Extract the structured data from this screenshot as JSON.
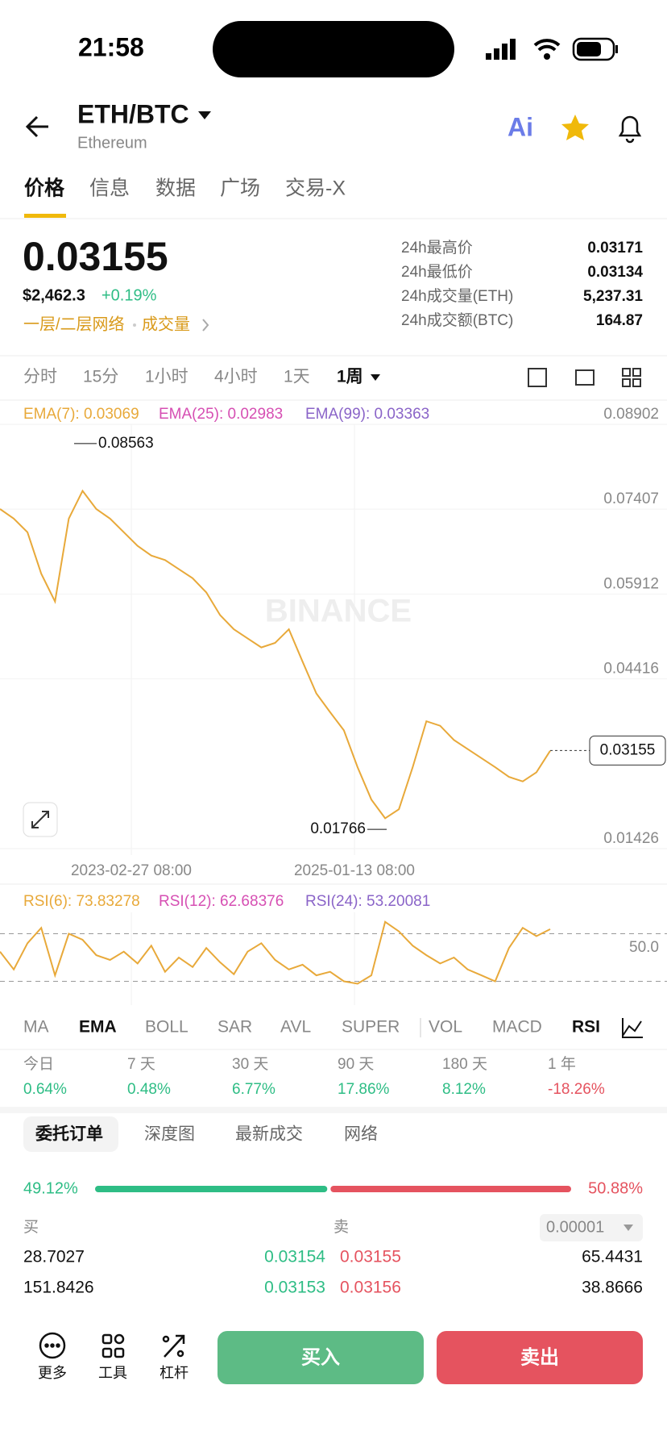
{
  "status_bar": {
    "time": "21:58"
  },
  "header": {
    "pair": "ETH/BTC",
    "name": "Ethereum"
  },
  "tabs": [
    "价格",
    "信息",
    "数据",
    "广场",
    "交易-X"
  ],
  "price": {
    "last": "0.03155",
    "usd": "$2,462.3",
    "change": "+0.19%",
    "tags": [
      "一层/二层网络",
      "成交量"
    ]
  },
  "stats": [
    {
      "label": "24h最高价",
      "value": "0.03171"
    },
    {
      "label": "24h最低价",
      "value": "0.03134"
    },
    {
      "label": "24h成交量(ETH)",
      "value": "5,237.31"
    },
    {
      "label": "24h成交额(BTC)",
      "value": "164.87"
    }
  ],
  "timeframes": [
    "分时",
    "15分",
    "1小时",
    "4小时",
    "1天",
    "1周"
  ],
  "chart_data": [
    {
      "type": "line",
      "color": "#e8a93a",
      "indicators": [
        {
          "label": "EMA(7): 0.03069",
          "color": "#e8a93a"
        },
        {
          "label": "EMA(25): 0.02983",
          "color": "#d64fb3"
        },
        {
          "label": "EMA(99): 0.03363",
          "color": "#8a64c8"
        }
      ],
      "values": [
        0.0741,
        0.0724,
        0.07,
        0.0627,
        0.0578,
        0.0724,
        0.0773,
        0.0741,
        0.0724,
        0.07,
        0.0676,
        0.0659,
        0.0651,
        0.0635,
        0.0619,
        0.0594,
        0.0554,
        0.0529,
        0.0513,
        0.0497,
        0.0505,
        0.0529,
        0.0472,
        0.0416,
        0.0383,
        0.0351,
        0.0286,
        0.0229,
        0.0196,
        0.0212,
        0.0286,
        0.0367,
        0.0359,
        0.0334,
        0.0318,
        0.0302,
        0.0286,
        0.0269,
        0.0261,
        0.0277,
        0.0315
      ],
      "ylim": [
        0.01426,
        0.08902
      ],
      "yticks": [
        0.08902,
        0.07407,
        0.05912,
        0.04416,
        0.01426
      ],
      "grid": true,
      "x_labels": [
        "2023-02-27 08:00",
        "2025-01-13 08:00"
      ],
      "high_label": 0.08563,
      "low_label": 0.01766,
      "current_price": 0.03155,
      "watermark": "BINANCE"
    },
    {
      "type": "line",
      "color": "#e8a93a",
      "indicators": [
        {
          "label": "RSI(6): 73.83278",
          "color": "#e8a93a"
        },
        {
          "label": "RSI(12): 62.68376",
          "color": "#d64fb3"
        },
        {
          "label": "RSI(24): 53.20081",
          "color": "#8a64c8"
        }
      ],
      "values": [
        55,
        40,
        62,
        75,
        35,
        70,
        65,
        52,
        48,
        55,
        45,
        60,
        38,
        50,
        42,
        58,
        46,
        36,
        55,
        62,
        48,
        40,
        44,
        35,
        38,
        30,
        28,
        35,
        80,
        72,
        60,
        52,
        45,
        50,
        40,
        35,
        30,
        58,
        75,
        68,
        73.83
      ],
      "ylim": [
        10,
        88
      ],
      "yticks": [
        {
          "value": 50,
          "label": "50.0"
        }
      ],
      "reference_lines": [
        70,
        30
      ]
    }
  ],
  "indicator_tabs": [
    "MA",
    "EMA",
    "BOLL",
    "SAR",
    "AVL",
    "SUPER",
    "VOL",
    "MACD",
    "RSI"
  ],
  "performance": [
    {
      "label": "今日",
      "value": "0.64%"
    },
    {
      "label": "7 天",
      "value": "0.48%"
    },
    {
      "label": "30 天",
      "value": "6.77%"
    },
    {
      "label": "90 天",
      "value": "17.86%"
    },
    {
      "label": "180 天",
      "value": "8.12%"
    },
    {
      "label": "1 年",
      "value": "-18.26%"
    }
  ],
  "order_book": {
    "tabs": [
      "委托订单",
      "深度图",
      "最新成交",
      "网络"
    ],
    "buy_ratio": {
      "value": 49.12,
      "label": "49.12%"
    },
    "sell_ratio": {
      "value": 50.88,
      "label": "50.88%"
    },
    "buy_header": "买",
    "sell_header": "卖",
    "precision": "0.00001",
    "rows": [
      [
        "28.7027",
        "0.03154",
        "0.03155",
        "65.4431"
      ],
      [
        "151.8426",
        "0.03153",
        "0.03156",
        "38.8666"
      ]
    ]
  },
  "bottom_bar": {
    "tools": [
      "更多",
      "工具",
      "杠杆"
    ],
    "buy": "买入",
    "sell": "卖出"
  }
}
